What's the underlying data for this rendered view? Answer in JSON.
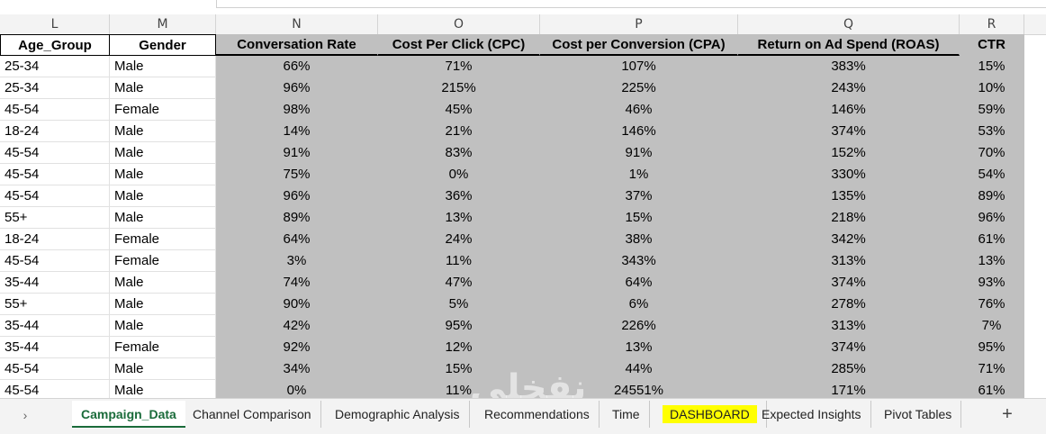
{
  "column_letters": [
    "L",
    "M",
    "N",
    "O",
    "P",
    "Q",
    "R"
  ],
  "headers": [
    "Age_Group",
    "Gender",
    "Conversation Rate",
    "Cost Per Click (CPC)",
    "Cost per Conversion (CPA)",
    "Return on Ad Spend (ROAS)",
    "CTR"
  ],
  "rows": [
    [
      "25-34",
      "Male",
      "66%",
      "71%",
      "107%",
      "383%",
      "15%"
    ],
    [
      "25-34",
      "Male",
      "96%",
      "215%",
      "225%",
      "243%",
      "10%"
    ],
    [
      "45-54",
      "Female",
      "98%",
      "45%",
      "46%",
      "146%",
      "59%"
    ],
    [
      "18-24",
      "Male",
      "14%",
      "21%",
      "146%",
      "374%",
      "53%"
    ],
    [
      "45-54",
      "Male",
      "91%",
      "83%",
      "91%",
      "152%",
      "70%"
    ],
    [
      "45-54",
      "Male",
      "75%",
      "0%",
      "1%",
      "330%",
      "54%"
    ],
    [
      "45-54",
      "Male",
      "96%",
      "36%",
      "37%",
      "135%",
      "89%"
    ],
    [
      "55+",
      "Male",
      "89%",
      "13%",
      "15%",
      "218%",
      "96%"
    ],
    [
      "18-24",
      "Female",
      "64%",
      "24%",
      "38%",
      "342%",
      "61%"
    ],
    [
      "45-54",
      "Female",
      "3%",
      "11%",
      "343%",
      "313%",
      "13%"
    ],
    [
      "35-44",
      "Male",
      "74%",
      "47%",
      "64%",
      "374%",
      "93%"
    ],
    [
      "55+",
      "Male",
      "90%",
      "5%",
      "6%",
      "278%",
      "76%"
    ],
    [
      "35-44",
      "Male",
      "42%",
      "95%",
      "226%",
      "313%",
      "7%"
    ],
    [
      "35-44",
      "Female",
      "92%",
      "12%",
      "13%",
      "374%",
      "95%"
    ],
    [
      "45-54",
      "Male",
      "34%",
      "15%",
      "44%",
      "285%",
      "71%"
    ],
    [
      "45-54",
      "Male",
      "0%",
      "11%",
      "24551%",
      "171%",
      "61%"
    ]
  ],
  "sheet_tabs": [
    {
      "label": "Campaign_Data",
      "active": true
    },
    {
      "label": "Channel Comparison"
    },
    {
      "label": "Demographic Analysis"
    },
    {
      "label": "Recommendations"
    },
    {
      "label": "Time"
    },
    {
      "label": "DASHBOARD",
      "highlight": "#ffff00"
    },
    {
      "label": "Expected Insights"
    },
    {
      "label": "Pivot Tables"
    }
  ],
  "nav_prev_symbol": "›",
  "add_sheet_symbol": "+",
  "colors": {
    "data_fill": "#c0c0c0",
    "active_tab": "#1a6b3a",
    "tab_highlight": "#ffff00"
  }
}
